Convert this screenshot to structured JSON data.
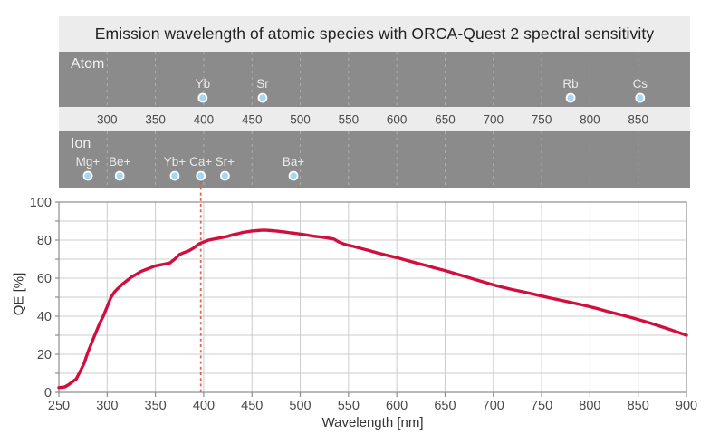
{
  "title": "Emission wavelength of atomic species with ORCA-Quest 2 spectral sensitivity",
  "colors": {
    "band_bg": "#8b8b8b",
    "strip_bg": "#ececec",
    "title_bg": "#ececec",
    "dot_fill": "#a5d7f2",
    "dot_ring": "#ffffff",
    "curve": "#d10f3f",
    "marker": "#e05548",
    "grid": "#cccccc",
    "axis": "#8c8c8c",
    "band_text": "#eaeaea",
    "tick_text": "#4a4a4a"
  },
  "atom_band": {
    "label": "Atom",
    "species": [
      {
        "name": "Yb",
        "wavelength": 399
      },
      {
        "name": "Sr",
        "wavelength": 461
      },
      {
        "name": "Rb",
        "wavelength": 780
      },
      {
        "name": "Cs",
        "wavelength": 852
      }
    ]
  },
  "wavelength_scale": {
    "ticks": [
      300,
      350,
      400,
      450,
      500,
      550,
      600,
      650,
      700,
      750,
      800,
      850
    ]
  },
  "ion_band": {
    "label": "Ion",
    "species": [
      {
        "name": "Mg+",
        "wavelength": 280
      },
      {
        "name": "Be+",
        "wavelength": 313
      },
      {
        "name": "Yb+",
        "wavelength": 370
      },
      {
        "name": "Ca+",
        "wavelength": 397
      },
      {
        "name": "Sr+",
        "wavelength": 422
      },
      {
        "name": "Ba+",
        "wavelength": 493
      }
    ]
  },
  "chart_data": {
    "type": "line",
    "title": "Emission wavelength of atomic species with ORCA-Quest 2 spectral sensitivity",
    "xlabel": "Wavelength [nm]",
    "ylabel": "QE [%]",
    "xlim": [
      250,
      900
    ],
    "ylim": [
      0,
      100
    ],
    "x_ticks": [
      250,
      300,
      350,
      400,
      450,
      500,
      550,
      600,
      650,
      700,
      750,
      800,
      850,
      900
    ],
    "y_ticks": [
      0,
      20,
      40,
      60,
      80,
      100
    ],
    "grid": true,
    "grid_step_y": 10,
    "marker_line_x": 397,
    "series": [
      {
        "name": "ORCA-Quest 2 QE",
        "points": [
          [
            250,
            2.5
          ],
          [
            256,
            2.8
          ],
          [
            260,
            4
          ],
          [
            264,
            5.5
          ],
          [
            268,
            7
          ],
          [
            272,
            11
          ],
          [
            276,
            15
          ],
          [
            280,
            21
          ],
          [
            284,
            26
          ],
          [
            288,
            31
          ],
          [
            292,
            36
          ],
          [
            296,
            40
          ],
          [
            300,
            45
          ],
          [
            304,
            50
          ],
          [
            308,
            53
          ],
          [
            312,
            55
          ],
          [
            316,
            57
          ],
          [
            320,
            58.5
          ],
          [
            325,
            60.5
          ],
          [
            330,
            62
          ],
          [
            335,
            63.5
          ],
          [
            340,
            64.5
          ],
          [
            345,
            65.5
          ],
          [
            350,
            66.5
          ],
          [
            355,
            67
          ],
          [
            360,
            67.5
          ],
          [
            365,
            68
          ],
          [
            370,
            70
          ],
          [
            375,
            72.5
          ],
          [
            380,
            73.5
          ],
          [
            385,
            74.5
          ],
          [
            390,
            76
          ],
          [
            395,
            78
          ],
          [
            400,
            79
          ],
          [
            405,
            80
          ],
          [
            410,
            80.5
          ],
          [
            415,
            81
          ],
          [
            420,
            81.5
          ],
          [
            425,
            82
          ],
          [
            430,
            82.8
          ],
          [
            435,
            83.3
          ],
          [
            440,
            84
          ],
          [
            445,
            84.4
          ],
          [
            450,
            84.8
          ],
          [
            455,
            85
          ],
          [
            460,
            85.2
          ],
          [
            465,
            85.2
          ],
          [
            470,
            85
          ],
          [
            475,
            84.8
          ],
          [
            480,
            84.5
          ],
          [
            485,
            84.2
          ],
          [
            490,
            83.8
          ],
          [
            495,
            83.5
          ],
          [
            500,
            83.2
          ],
          [
            505,
            82.8
          ],
          [
            510,
            82.4
          ],
          [
            515,
            82
          ],
          [
            520,
            81.7
          ],
          [
            525,
            81.4
          ],
          [
            530,
            81
          ],
          [
            535,
            80.5
          ],
          [
            540,
            79
          ],
          [
            545,
            78
          ],
          [
            550,
            77.3
          ],
          [
            555,
            76.7
          ],
          [
            560,
            76
          ],
          [
            570,
            74.7
          ],
          [
            580,
            73.3
          ],
          [
            590,
            72
          ],
          [
            600,
            70.8
          ],
          [
            610,
            69.4
          ],
          [
            620,
            68
          ],
          [
            630,
            66.7
          ],
          [
            640,
            65.3
          ],
          [
            650,
            64
          ],
          [
            660,
            62.5
          ],
          [
            670,
            61
          ],
          [
            680,
            59.5
          ],
          [
            690,
            58
          ],
          [
            700,
            56.5
          ],
          [
            710,
            55.2
          ],
          [
            720,
            54
          ],
          [
            730,
            52.9
          ],
          [
            740,
            51.8
          ],
          [
            750,
            50.6
          ],
          [
            760,
            49.5
          ],
          [
            770,
            48.4
          ],
          [
            780,
            47.3
          ],
          [
            790,
            46.2
          ],
          [
            800,
            45
          ],
          [
            810,
            43.7
          ],
          [
            820,
            42.3
          ],
          [
            830,
            41
          ],
          [
            840,
            39.7
          ],
          [
            850,
            38.3
          ],
          [
            860,
            36.8
          ],
          [
            870,
            35.2
          ],
          [
            880,
            33.5
          ],
          [
            890,
            31.8
          ],
          [
            900,
            30
          ]
        ]
      }
    ]
  }
}
